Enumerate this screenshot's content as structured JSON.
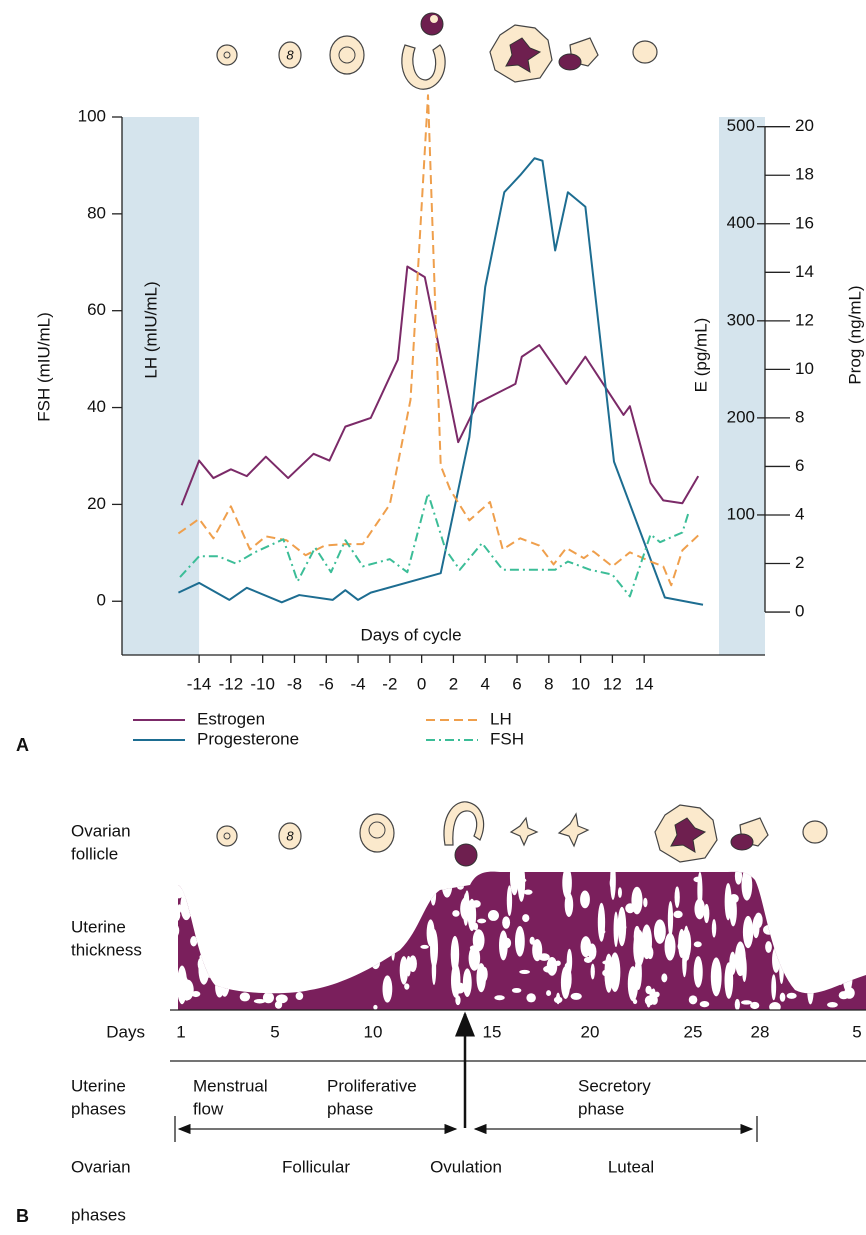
{
  "chart_data": {
    "type": "line",
    "panel_label": "A",
    "x_label": "Days of cycle",
    "y_label": "FSH (mIU/mL)",
    "y_label_inner": "LH (mIU/mL)",
    "y2_label": "E (pg/mL)",
    "y3_label": "Prog (ng/mL)",
    "xlim": [
      -18.85,
      21.6
    ],
    "xticks": [
      -14,
      -12,
      -10,
      -8,
      -6,
      -4,
      -2,
      0,
      2,
      4,
      6,
      8,
      10,
      12,
      14
    ],
    "ylim": [
      -11.1,
      100
    ],
    "yticks": [
      0,
      20,
      40,
      60,
      80,
      100
    ],
    "y2lim": [
      -44.3,
      510
    ],
    "y2ticks": [
      100,
      200,
      300,
      400,
      500
    ],
    "y3lim": [
      -1.77,
      20.4
    ],
    "y3ticks": [
      0,
      2,
      4,
      6,
      8,
      10,
      12,
      14,
      16,
      18,
      20
    ],
    "shading": "#d5e4ed",
    "series": [
      {
        "name": "Estrogen",
        "color": "#7b2a68",
        "line_style": "solid",
        "axis": "y2",
        "x": [
          -15.1,
          -14,
          -13.1,
          -12,
          -11,
          -9.8,
          -8.4,
          -6.8,
          -5.8,
          -4.8,
          -3.2,
          -1.5,
          -0.9,
          0.2,
          2.3,
          3.5,
          5.9,
          6.3,
          7.4,
          9.1,
          10.3,
          12.7,
          13.1,
          14.4,
          15.2,
          16.4,
          17.4
        ],
        "values": [
          110,
          156,
          138,
          147,
          140,
          160,
          138,
          163,
          156,
          191,
          200,
          260,
          356,
          345,
          175,
          215,
          235,
          263,
          275,
          235,
          263,
          203,
          212,
          133,
          115,
          112,
          140
        ]
      },
      {
        "name": "Progesterone",
        "color": "#1d6d91",
        "line_style": "solid",
        "axis": "y3",
        "x": [
          -15.3,
          -14,
          -12.1,
          -11,
          -8.8,
          -7.7,
          -5.6,
          -4.8,
          -4,
          -3.2,
          1.2,
          3.0,
          4.0,
          5.2,
          6.2,
          7.1,
          7.6,
          8.4,
          9.2,
          10.3,
          12.1,
          15.3,
          17.7
        ],
        "values": [
          0.8,
          1.2,
          0.5,
          1.0,
          0.4,
          0.7,
          0.5,
          0.9,
          0.5,
          0.8,
          1.6,
          7.2,
          13.4,
          17.3,
          18.0,
          18.7,
          18.6,
          14.9,
          17.3,
          16.7,
          6.2,
          0.6,
          0.3
        ]
      },
      {
        "name": "LH",
        "color": "#ef9f4c",
        "line_style": "dashed",
        "axis": "y",
        "x": [
          -15.3,
          -14,
          -13.1,
          -12,
          -10.8,
          -9.8,
          -8.5,
          -7.3,
          -6.1,
          -4.8,
          -3.7,
          -2,
          -0.7,
          0.4,
          1.2,
          1.8,
          3,
          4.3,
          5.1,
          6.2,
          7.4,
          8.3,
          9.1,
          10.2,
          10.8,
          12,
          13.1,
          14.4,
          15.2,
          15.7,
          16.4,
          17.4
        ],
        "values": [
          14,
          17,
          13,
          19.6,
          10.7,
          13.4,
          12.6,
          9.5,
          11.5,
          11.8,
          11.8,
          20,
          41.6,
          104.5,
          28,
          23,
          16.7,
          20.5,
          10.7,
          13,
          11.5,
          7.6,
          11,
          8.9,
          10.3,
          7.2,
          10.1,
          8.2,
          7.2,
          3.3,
          10.5,
          13.6
        ]
      },
      {
        "name": "FSH",
        "color": "#3bbd97",
        "line_style": "dashdot",
        "axis": "y",
        "x": [
          -15.2,
          -14,
          -12.8,
          -11.7,
          -10.5,
          -8.7,
          -7.8,
          -6.7,
          -5.7,
          -4.8,
          -3.7,
          -2,
          -0.9,
          0.4,
          1.5,
          2.4,
          3.8,
          5.1,
          7.4,
          8.4,
          9.2,
          10.6,
          12,
          13.1,
          14.4,
          15,
          16.4,
          16.8
        ],
        "values": [
          5,
          9.3,
          9.3,
          7.8,
          10.1,
          12.8,
          4.1,
          11.1,
          6,
          12.6,
          7.2,
          8.7,
          6,
          22.3,
          10.7,
          6.5,
          12,
          6.5,
          6.5,
          6.5,
          8.2,
          6.5,
          5.5,
          1,
          13.8,
          12.2,
          14.2,
          18.4
        ]
      }
    ]
  },
  "panel_b": {
    "label": "B",
    "row_labels": {
      "follicle": [
        "Ovarian",
        "follicle"
      ],
      "thickness": [
        "Uterine",
        "thickness"
      ],
      "days": "Days",
      "uterine_phases": [
        "Uterine",
        "phases"
      ],
      "ovarian_phases": [
        "Ovarian",
        "phases"
      ]
    },
    "days": [
      1,
      5,
      10,
      15,
      20,
      25,
      28,
      5
    ],
    "uterine_phase_names": [
      [
        "Menstrual",
        "flow"
      ],
      [
        "Proliferative",
        "phase"
      ],
      [
        "Secretory",
        "phase"
      ]
    ],
    "ovarian_phase_names": [
      "Follicular",
      "Ovulation",
      "Luteal"
    ]
  }
}
